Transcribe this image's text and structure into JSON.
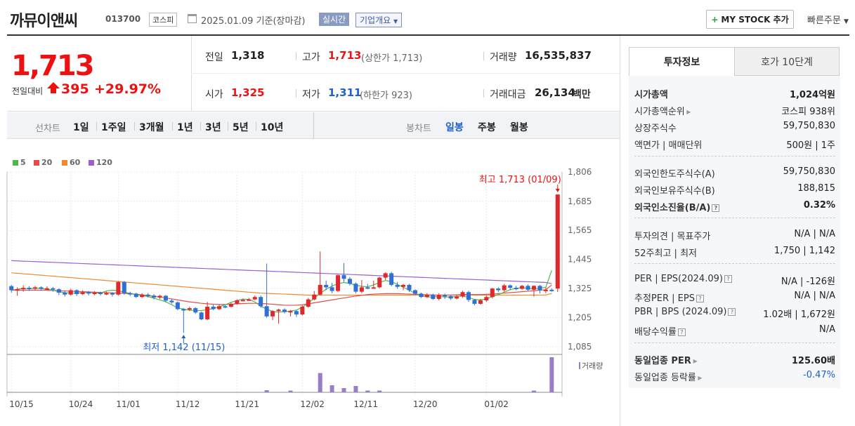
{
  "header": {
    "name": "까뮤이앤씨",
    "code": "013700",
    "market": "코스피",
    "date": "2025.01.09 기준(장마감)",
    "live": "실시간",
    "overview": "기업개요",
    "mystock": "MY STOCK 추가",
    "quick_order": "빠른주문"
  },
  "price": {
    "current": "1,713",
    "change_label": "전일대비",
    "change_amount": "395",
    "change_pct": "+29.97%"
  },
  "stats": {
    "prev_label": "전일",
    "prev": "1,318",
    "high_label": "고가",
    "high": "1,713",
    "upper_limit": "(상한가 1,713)",
    "volume_label": "거래량",
    "volume": "16,535,837",
    "open_label": "시가",
    "open": "1,325",
    "low_label": "저가",
    "low": "1,311",
    "lower_limit": "(하한가 923)",
    "amount_label": "거래대금",
    "amount": "26,134",
    "amount_unit": "백만"
  },
  "period_bar": {
    "line_label": "선차트",
    "periods": [
      "1일",
      "1주일",
      "3개월",
      "1년",
      "3년",
      "5년",
      "10년"
    ],
    "candle_label": "봉차트",
    "candles": [
      "일봉",
      "주봉",
      "월봉"
    ]
  },
  "chart_data": {
    "type": "candlestick",
    "legend": [
      {
        "name": "5",
        "color": "#4cb848"
      },
      {
        "name": "20",
        "color": "#e84a4a"
      },
      {
        "name": "60",
        "color": "#f08a2e"
      },
      {
        "name": "120",
        "color": "#9b5fd0"
      }
    ],
    "y_ticks": [
      "1,806",
      "1,685",
      "1,565",
      "1,445",
      "1,325",
      "1,205",
      "1,085"
    ],
    "ylim": [
      1085,
      1806
    ],
    "x_ticks": [
      "10/15",
      "10/24",
      "11/01",
      "11/12",
      "11/21",
      "12/02",
      "12/11",
      "12/20",
      "01/02"
    ],
    "high_note": "최고 1,713 (01/09)",
    "low_note": "최저 1,142 (11/15)",
    "volume_label": "거래량",
    "candles": [
      [
        1335,
        1318,
        1340,
        1308
      ],
      [
        1318,
        1322,
        1330,
        1295
      ],
      [
        1322,
        1328,
        1338,
        1312
      ],
      [
        1328,
        1325,
        1335,
        1315
      ],
      [
        1325,
        1330,
        1336,
        1318
      ],
      [
        1330,
        1324,
        1334,
        1316
      ],
      [
        1324,
        1326,
        1334,
        1318
      ],
      [
        1326,
        1322,
        1332,
        1312
      ],
      [
        1322,
        1308,
        1326,
        1298
      ],
      [
        1308,
        1300,
        1316,
        1292
      ],
      [
        1300,
        1318,
        1324,
        1296
      ],
      [
        1318,
        1302,
        1322,
        1294
      ],
      [
        1302,
        1310,
        1318,
        1298
      ],
      [
        1310,
        1305,
        1315,
        1296
      ],
      [
        1305,
        1308,
        1314,
        1298
      ],
      [
        1308,
        1304,
        1312,
        1296
      ],
      [
        1304,
        1306,
        1312,
        1298
      ],
      [
        1306,
        1300,
        1310,
        1292
      ],
      [
        1300,
        1352,
        1356,
        1296
      ],
      [
        1352,
        1306,
        1356,
        1300
      ],
      [
        1306,
        1304,
        1312,
        1294
      ],
      [
        1304,
        1290,
        1308,
        1286
      ],
      [
        1290,
        1300,
        1306,
        1286
      ],
      [
        1300,
        1296,
        1306,
        1288
      ],
      [
        1296,
        1288,
        1302,
        1280
      ],
      [
        1288,
        1295,
        1300,
        1282
      ],
      [
        1295,
        1275,
        1298,
        1268
      ],
      [
        1275,
        1268,
        1282,
        1262
      ],
      [
        1268,
        1240,
        1272,
        1236
      ],
      [
        1240,
        1238,
        1244,
        1142
      ],
      [
        1238,
        1244,
        1250,
        1232
      ],
      [
        1244,
        1226,
        1248,
        1220
      ],
      [
        1226,
        1198,
        1230,
        1194
      ],
      [
        1198,
        1250,
        1270,
        1194
      ],
      [
        1250,
        1240,
        1258,
        1236
      ],
      [
        1240,
        1252,
        1260,
        1236
      ],
      [
        1252,
        1250,
        1256,
        1244
      ],
      [
        1250,
        1262,
        1266,
        1246
      ],
      [
        1262,
        1276,
        1280,
        1258
      ],
      [
        1276,
        1278,
        1284,
        1272
      ],
      [
        1278,
        1280,
        1286,
        1274
      ],
      [
        1280,
        1290,
        1296,
        1276
      ],
      [
        1290,
        1252,
        1296,
        1246
      ],
      [
        1252,
        1210,
        1428,
        1204
      ],
      [
        1210,
        1232,
        1236,
        1194
      ],
      [
        1232,
        1238,
        1242,
        1180
      ],
      [
        1238,
        1228,
        1244,
        1222
      ],
      [
        1228,
        1232,
        1236,
        1210
      ],
      [
        1232,
        1218,
        1236,
        1208
      ],
      [
        1218,
        1250,
        1256,
        1214
      ],
      [
        1250,
        1280,
        1286,
        1246
      ],
      [
        1280,
        1300,
        1315,
        1276
      ],
      [
        1300,
        1340,
        1478,
        1296
      ],
      [
        1340,
        1330,
        1358,
        1318
      ],
      [
        1330,
        1315,
        1348,
        1306
      ],
      [
        1315,
        1380,
        1382,
        1310
      ],
      [
        1380,
        1365,
        1430,
        1352
      ],
      [
        1365,
        1345,
        1372,
        1338
      ],
      [
        1345,
        1312,
        1350,
        1305
      ],
      [
        1312,
        1330,
        1360,
        1306
      ],
      [
        1330,
        1328,
        1344,
        1322
      ],
      [
        1328,
        1330,
        1358,
        1324
      ],
      [
        1330,
        1370,
        1374,
        1326
      ],
      [
        1370,
        1388,
        1392,
        1360
      ],
      [
        1388,
        1340,
        1394,
        1334
      ],
      [
        1340,
        1332,
        1352,
        1324
      ],
      [
        1332,
        1340,
        1344,
        1318
      ],
      [
        1340,
        1318,
        1344,
        1310
      ],
      [
        1318,
        1304,
        1322,
        1298
      ],
      [
        1304,
        1290,
        1308,
        1286
      ],
      [
        1290,
        1300,
        1306,
        1286
      ],
      [
        1300,
        1282,
        1304,
        1278
      ],
      [
        1282,
        1298,
        1306,
        1276
      ],
      [
        1298,
        1294,
        1304,
        1282
      ],
      [
        1294,
        1284,
        1298,
        1278
      ],
      [
        1284,
        1292,
        1298,
        1280
      ],
      [
        1292,
        1310,
        1316,
        1286
      ],
      [
        1310,
        1278,
        1316,
        1270
      ],
      [
        1278,
        1262,
        1282,
        1256
      ],
      [
        1262,
        1276,
        1282,
        1258
      ],
      [
        1276,
        1290,
        1296,
        1270
      ],
      [
        1290,
        1325,
        1328,
        1284
      ],
      [
        1325,
        1318,
        1330,
        1310
      ],
      [
        1318,
        1338,
        1344,
        1312
      ],
      [
        1338,
        1328,
        1342,
        1320
      ],
      [
        1328,
        1324,
        1336,
        1318
      ],
      [
        1324,
        1336,
        1340,
        1320
      ],
      [
        1336,
        1320,
        1342,
        1314
      ],
      [
        1320,
        1336,
        1338,
        1292
      ],
      [
        1336,
        1318,
        1340,
        1305
      ],
      [
        1318,
        1320,
        1328,
        1306
      ],
      [
        1320,
        1318,
        1326,
        1312
      ],
      [
        1325,
        1713,
        1713,
        1311
      ]
    ],
    "ma": {
      "5": [
        1318,
        1322,
        1325,
        1324,
        1326,
        1325,
        1322,
        1318,
        1312,
        1308,
        1306,
        1306,
        1308,
        1309,
        1307,
        1306,
        1315,
        1318,
        1316,
        1310,
        1305,
        1300,
        1296,
        1292,
        1285,
        1278,
        1270,
        1258,
        1245,
        1240,
        1236,
        1234,
        1234,
        1238,
        1242,
        1250,
        1258,
        1268,
        1276,
        1281,
        1280,
        1270,
        1252,
        1240,
        1230,
        1228,
        1230,
        1232,
        1236,
        1248,
        1265,
        1285,
        1305,
        1322,
        1335,
        1345,
        1350,
        1346,
        1338,
        1334,
        1332,
        1340,
        1350,
        1358,
        1354,
        1342,
        1330,
        1318,
        1305,
        1296,
        1290,
        1290,
        1292,
        1290,
        1290,
        1292,
        1294,
        1288,
        1280,
        1278,
        1282,
        1292,
        1300,
        1310,
        1320,
        1326,
        1328,
        1326,
        1324,
        1326,
        1330,
        1400
      ],
      "20": [
        1318,
        1318,
        1318,
        1318,
        1318,
        1318,
        1318,
        1317,
        1316,
        1315,
        1314,
        1313,
        1312,
        1311,
        1310,
        1309,
        1308,
        1307,
        1306,
        1305,
        1303,
        1301,
        1299,
        1296,
        1293,
        1290,
        1286,
        1282,
        1278,
        1274,
        1270,
        1267,
        1264,
        1262,
        1260,
        1259,
        1259,
        1260,
        1262,
        1263,
        1264,
        1264,
        1263,
        1262,
        1260,
        1258,
        1256,
        1256,
        1256,
        1258,
        1262,
        1266,
        1270,
        1274,
        1278,
        1282,
        1286,
        1290,
        1294,
        1297,
        1300,
        1302,
        1303,
        1304,
        1304,
        1304,
        1303,
        1302,
        1301,
        1300,
        1299,
        1298,
        1298,
        1298,
        1298,
        1299,
        1300,
        1300,
        1300,
        1300,
        1301,
        1302,
        1304,
        1306,
        1308,
        1310,
        1312,
        1314,
        1316,
        1318,
        1320,
        1340
      ],
      "60": [
        1390,
        1388,
        1386,
        1384,
        1382,
        1380,
        1378,
        1376,
        1374,
        1372,
        1370,
        1368,
        1366,
        1364,
        1362,
        1360,
        1358,
        1356,
        1354,
        1352,
        1350,
        1348,
        1346,
        1344,
        1342,
        1340,
        1338,
        1336,
        1334,
        1332,
        1330,
        1328,
        1326,
        1324,
        1322,
        1320,
        1318,
        1316,
        1314,
        1312,
        1310,
        1308,
        1306,
        1305,
        1304,
        1303,
        1302,
        1301,
        1300,
        1299,
        1298,
        1298,
        1298,
        1298,
        1298,
        1298,
        1298,
        1298,
        1298,
        1298,
        1298,
        1298,
        1298,
        1298,
        1298,
        1298,
        1298,
        1298,
        1298,
        1298,
        1298,
        1298,
        1298,
        1298,
        1298,
        1298,
        1298,
        1298,
        1298,
        1298,
        1298,
        1298,
        1298,
        1298,
        1298,
        1298,
        1298,
        1298,
        1298,
        1298,
        1298,
        1305
      ],
      "120": [
        1440,
        1439,
        1438,
        1437,
        1436,
        1435,
        1434,
        1433,
        1432,
        1431,
        1430,
        1429,
        1428,
        1427,
        1426,
        1425,
        1424,
        1423,
        1422,
        1421,
        1420,
        1419,
        1418,
        1417,
        1416,
        1415,
        1414,
        1413,
        1412,
        1411,
        1410,
        1409,
        1408,
        1407,
        1406,
        1405,
        1404,
        1403,
        1402,
        1401,
        1400,
        1399,
        1398,
        1397,
        1396,
        1395,
        1394,
        1393,
        1392,
        1391,
        1390,
        1389,
        1388,
        1387,
        1386,
        1385,
        1384,
        1383,
        1382,
        1381,
        1380,
        1379,
        1378,
        1377,
        1376,
        1375,
        1374,
        1373,
        1372,
        1371,
        1370,
        1369,
        1368,
        1367,
        1366,
        1365,
        1364,
        1363,
        1362,
        1361,
        1360,
        1359,
        1358,
        1357,
        1356,
        1355,
        1354,
        1353,
        1352,
        1351,
        1350,
        1345
      ]
    },
    "volume_spikes": [
      {
        "idx": 43,
        "v": 0.06
      },
      {
        "idx": 47,
        "v": 0.05
      },
      {
        "idx": 52,
        "v": 0.55
      },
      {
        "idx": 54,
        "v": 0.2
      },
      {
        "idx": 56,
        "v": 0.12
      },
      {
        "idx": 58,
        "v": 0.18
      },
      {
        "idx": 60,
        "v": 0.05
      },
      {
        "idx": 62,
        "v": 0.05
      },
      {
        "idx": 88,
        "v": 0.05
      },
      {
        "idx": 91,
        "v": 1.0
      }
    ]
  },
  "invest": {
    "tab_invest": "투자정보",
    "tab_quote": "호가 10단계",
    "rows": [
      {
        "label": "시가총액",
        "value": "1,024억원",
        "bold": true
      },
      {
        "label": "시가총액순위",
        "value": "코스피 938위",
        "arrow": true
      },
      {
        "label": "상장주식수",
        "value": "59,750,830"
      },
      {
        "label": "액면가 | 매매단위",
        "value": "500원 | 1주"
      },
      {
        "label": "외국인한도주식수(A)",
        "value": "59,750,830"
      },
      {
        "label": "외국인보유주식수(B)",
        "value": "188,815"
      },
      {
        "label": "외국인소진율(B/A)",
        "value": "0.32%",
        "bold": true,
        "info": true
      },
      {
        "label": "투자의견 | 목표주가",
        "value": "N/A | N/A"
      },
      {
        "label": "52주최고 | 최저",
        "value": "1,750 | 1,142"
      },
      {
        "label": "PER | EPS(2024.09)",
        "value": "N/A | -126원",
        "info": true
      },
      {
        "label": "추정PER | EPS",
        "value": "N/A | N/A",
        "info": true
      },
      {
        "label": "PBR | BPS (2024.09)",
        "value": "1.02배 | 1,672원",
        "info": true
      },
      {
        "label": "배당수익률",
        "value": "N/A",
        "info": true
      },
      {
        "label": "동일업종 PER",
        "value": "125.60배",
        "bold": true,
        "arrow": true
      },
      {
        "label": "동일업종 등락률",
        "value": "-0.47%",
        "arrow": true
      }
    ]
  }
}
